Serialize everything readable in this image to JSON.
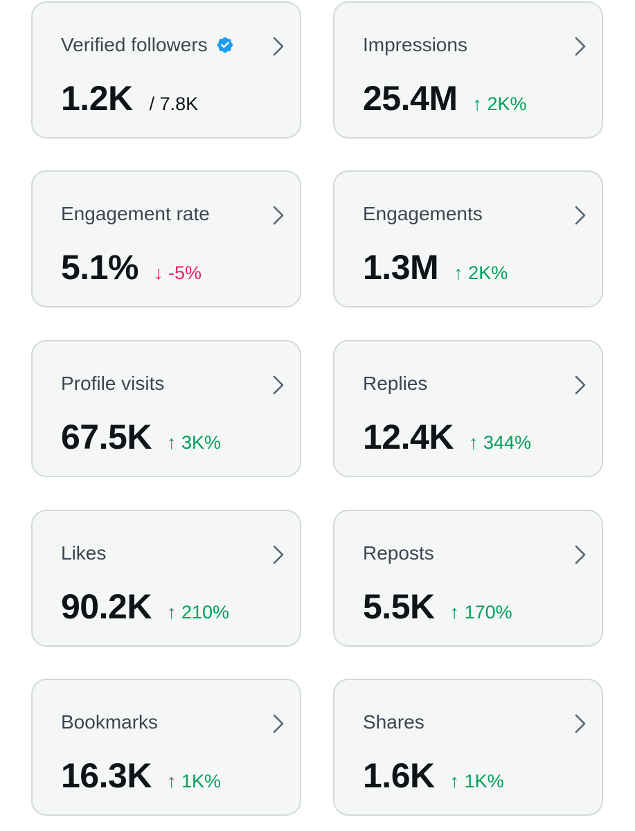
{
  "colors": {
    "up": "#00a05a",
    "down": "#e0245e",
    "verified": "#1d9bf0"
  },
  "cards": [
    {
      "title": "Verified followers",
      "value": "1.2K",
      "total": "/ 7.8K",
      "icon": "verified-badge-icon"
    },
    {
      "title": "Impressions",
      "value": "25.4M",
      "delta": "↑ 2K%",
      "direction": "up"
    },
    {
      "title": "Engagement rate",
      "value": "5.1%",
      "delta": "↓ -5%",
      "direction": "down"
    },
    {
      "title": "Engagements",
      "value": "1.3M",
      "delta": "↑ 2K%",
      "direction": "up"
    },
    {
      "title": "Profile visits",
      "value": "67.5K",
      "delta": "↑ 3K%",
      "direction": "up"
    },
    {
      "title": "Replies",
      "value": "12.4K",
      "delta": "↑ 344%",
      "direction": "up"
    },
    {
      "title": "Likes",
      "value": "90.2K",
      "delta": "↑ 210%",
      "direction": "up"
    },
    {
      "title": "Reposts",
      "value": "5.5K",
      "delta": "↑ 170%",
      "direction": "up"
    },
    {
      "title": "Bookmarks",
      "value": "16.3K",
      "delta": "↑ 1K%",
      "direction": "up"
    },
    {
      "title": "Shares",
      "value": "1.6K",
      "delta": "↑ 1K%",
      "direction": "up"
    }
  ]
}
